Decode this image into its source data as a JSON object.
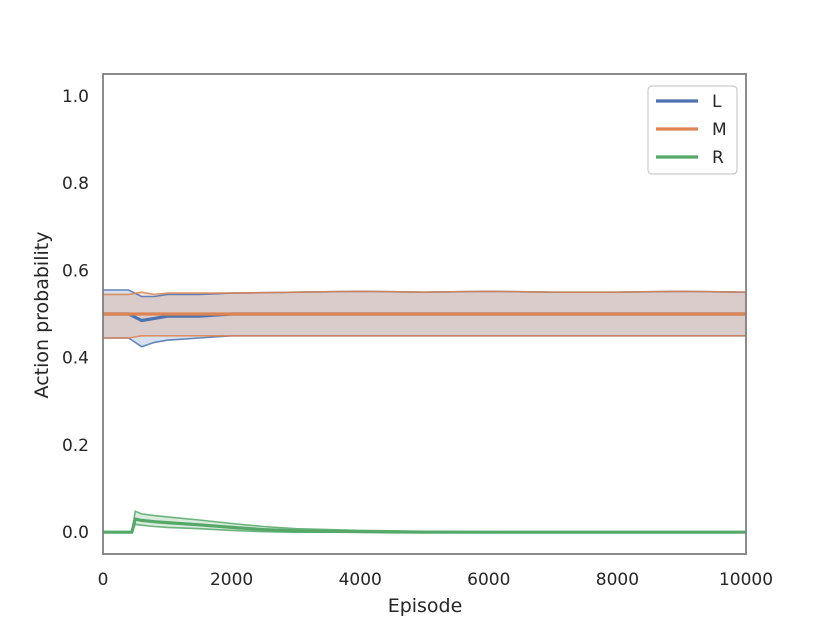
{
  "chart_data": {
    "type": "line",
    "title": "",
    "xlabel": "Episode",
    "ylabel": "Action probability",
    "xlim": [
      0,
      10000
    ],
    "ylim": [
      -0.05,
      1.05
    ],
    "xticks": [
      0,
      2000,
      4000,
      6000,
      8000,
      10000
    ],
    "xtick_labels": [
      "0",
      "2000",
      "4000",
      "6000",
      "8000",
      "10000"
    ],
    "yticks": [
      0.0,
      0.2,
      0.4,
      0.6,
      0.8,
      1.0
    ],
    "ytick_labels": [
      "0.0",
      "0.2",
      "0.4",
      "0.6",
      "0.8",
      "1.0"
    ],
    "grid": false,
    "legend_position": "top-right",
    "series": [
      {
        "name": "L",
        "color": "#4c72b0",
        "x": [
          0,
          400,
          600,
          800,
          1000,
          1500,
          2000,
          3000,
          4000,
          5000,
          6000,
          7000,
          8000,
          9000,
          10000
        ],
        "mean": [
          0.5,
          0.5,
          0.485,
          0.49,
          0.495,
          0.495,
          0.5,
          0.5,
          0.5,
          0.5,
          0.5,
          0.5,
          0.5,
          0.5,
          0.5
        ],
        "upper": [
          0.555,
          0.555,
          0.54,
          0.54,
          0.545,
          0.545,
          0.548,
          0.55,
          0.552,
          0.55,
          0.552,
          0.55,
          0.55,
          0.552,
          0.55
        ],
        "lower": [
          0.445,
          0.445,
          0.425,
          0.435,
          0.44,
          0.445,
          0.45,
          0.45,
          0.45,
          0.45,
          0.45,
          0.45,
          0.45,
          0.45,
          0.45
        ]
      },
      {
        "name": "M",
        "color": "#dd8452",
        "x": [
          0,
          400,
          600,
          800,
          1000,
          1500,
          2000,
          3000,
          4000,
          5000,
          6000,
          7000,
          8000,
          9000,
          10000
        ],
        "mean": [
          0.5,
          0.5,
          0.5,
          0.5,
          0.5,
          0.5,
          0.5,
          0.5,
          0.5,
          0.5,
          0.5,
          0.5,
          0.5,
          0.5,
          0.5
        ],
        "upper": [
          0.545,
          0.545,
          0.55,
          0.545,
          0.548,
          0.548,
          0.548,
          0.55,
          0.552,
          0.55,
          0.552,
          0.55,
          0.55,
          0.552,
          0.55
        ],
        "lower": [
          0.445,
          0.445,
          0.45,
          0.45,
          0.45,
          0.45,
          0.45,
          0.45,
          0.45,
          0.45,
          0.45,
          0.45,
          0.45,
          0.45,
          0.45
        ]
      },
      {
        "name": "R",
        "color": "#55a868",
        "x": [
          0,
          400,
          450,
          500,
          600,
          800,
          1000,
          1500,
          2000,
          2500,
          3000,
          4000,
          5000,
          6000,
          7000,
          8000,
          9000,
          10000
        ],
        "mean": [
          0.0,
          0.0,
          0.0,
          0.03,
          0.027,
          0.024,
          0.022,
          0.017,
          0.011,
          0.006,
          0.003,
          0.001,
          0.0,
          0.0,
          0.0,
          0.0,
          0.0,
          0.0
        ],
        "upper": [
          0.0,
          0.0,
          0.0,
          0.048,
          0.042,
          0.038,
          0.035,
          0.028,
          0.02,
          0.013,
          0.008,
          0.004,
          0.002,
          0.001,
          0.0,
          0.0,
          0.0,
          0.0
        ],
        "lower": [
          0.0,
          0.0,
          0.0,
          0.018,
          0.016,
          0.013,
          0.011,
          0.008,
          0.004,
          0.001,
          0.0,
          0.0,
          0.0,
          0.0,
          0.0,
          0.0,
          0.0,
          0.0
        ]
      }
    ]
  }
}
